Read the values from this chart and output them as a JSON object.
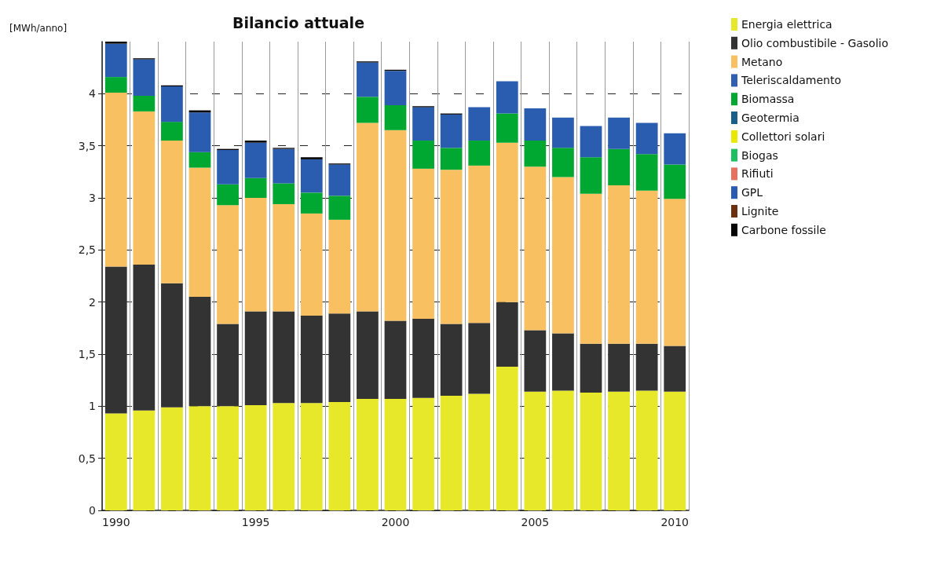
{
  "chart_data": {
    "type": "bar",
    "title": "Bilancio attuale",
    "ylabel": "[MWh/anno]",
    "stacked": true,
    "grid": true,
    "legend": "top right",
    "categories": [
      "1990",
      null,
      null,
      null,
      null,
      "1995",
      null,
      null,
      null,
      null,
      "2000",
      null,
      null,
      null,
      null,
      "2005",
      null,
      null,
      null,
      null,
      "2010"
    ],
    "ylim": [
      0,
      4.5
    ],
    "yticks": [
      0,
      {
        "value": 0.5,
        "label": "0,5"
      },
      1,
      {
        "value": 1.5,
        "label": "1,5"
      },
      2,
      {
        "value": 2.5,
        "label": "2,5"
      },
      3,
      {
        "value": 3.5,
        "label": "3,5"
      },
      4
    ],
    "series": [
      {
        "name": "Energia elettrica",
        "color": "#e8e82a",
        "values": [
          0.93,
          0.96,
          0.99,
          1.0,
          1.0,
          1.01,
          1.03,
          1.03,
          1.04,
          1.07,
          1.07,
          1.08,
          1.1,
          1.12,
          1.38,
          1.14,
          1.15,
          1.13,
          1.14,
          1.15,
          1.14
        ]
      },
      {
        "name": "Olio combustibile - Gasolio",
        "color": "#333333",
        "values": [
          1.41,
          1.4,
          1.19,
          1.05,
          0.79,
          0.9,
          0.88,
          0.84,
          0.85,
          0.84,
          0.75,
          0.76,
          0.69,
          0.68,
          0.62,
          0.59,
          0.55,
          0.47,
          0.46,
          0.45,
          0.44
        ]
      },
      {
        "name": "Metano",
        "color": "#f8c060",
        "values": [
          1.67,
          1.47,
          1.37,
          1.24,
          1.14,
          1.09,
          1.03,
          0.98,
          0.9,
          1.81,
          1.83,
          1.44,
          1.48,
          1.51,
          1.53,
          1.57,
          1.5,
          1.44,
          1.52,
          1.47,
          1.41
        ]
      },
      {
        "name": "Teleriscaldamento",
        "color": "#2f5fb0",
        "values": [
          0,
          0,
          0,
          0,
          0,
          0,
          0,
          0,
          0,
          0,
          0,
          0,
          0,
          0,
          0,
          0,
          0,
          0,
          0,
          0,
          0
        ]
      },
      {
        "name": "Biomassa",
        "color": "#00a832",
        "values": [
          0.15,
          0.15,
          0.18,
          0.15,
          0.2,
          0.19,
          0.2,
          0.2,
          0.23,
          0.25,
          0.24,
          0.27,
          0.21,
          0.24,
          0.28,
          0.25,
          0.28,
          0.35,
          0.35,
          0.35,
          0.33
        ]
      },
      {
        "name": "Geotermia",
        "color": "#1a5f8a",
        "values": [
          0,
          0,
          0,
          0,
          0,
          0,
          0,
          0,
          0,
          0,
          0,
          0,
          0,
          0,
          0,
          0,
          0,
          0,
          0,
          0,
          0
        ]
      },
      {
        "name": "Collettori solari",
        "color": "#e8e800",
        "values": [
          0,
          0,
          0,
          0,
          0,
          0,
          0,
          0,
          0,
          0,
          0,
          0,
          0,
          0,
          0,
          0,
          0,
          0,
          0,
          0,
          0
        ]
      },
      {
        "name": "Biogas",
        "color": "#1cc060",
        "values": [
          0,
          0,
          0,
          0,
          0,
          0,
          0,
          0,
          0,
          0,
          0,
          0,
          0,
          0,
          0,
          0,
          0,
          0,
          0,
          0,
          0
        ]
      },
      {
        "name": "Rifiuti",
        "color": "#e87060",
        "values": [
          0,
          0,
          0,
          0,
          0,
          0,
          0,
          0,
          0,
          0,
          0,
          0,
          0,
          0,
          0,
          0,
          0,
          0,
          0,
          0,
          0
        ]
      },
      {
        "name": "GPL",
        "color": "#2a5cb0",
        "values": [
          0.32,
          0.35,
          0.34,
          0.38,
          0.33,
          0.34,
          0.33,
          0.32,
          0.3,
          0.33,
          0.33,
          0.32,
          0.32,
          0.32,
          0.31,
          0.31,
          0.29,
          0.3,
          0.3,
          0.3,
          0.3
        ]
      },
      {
        "name": "Lignite",
        "color": "#6b3010",
        "values": [
          0,
          0,
          0,
          0,
          0,
          0,
          0,
          0,
          0,
          0,
          0,
          0,
          0,
          0,
          0,
          0,
          0,
          0,
          0,
          0,
          0
        ]
      },
      {
        "name": "Carbone fossile",
        "color": "#050505",
        "values": [
          0.02,
          0.01,
          0.01,
          0.02,
          0.01,
          0.02,
          0.01,
          0.02,
          0.01,
          0.01,
          0.01,
          0.01,
          0.01,
          0,
          0,
          0,
          0,
          0,
          0,
          0,
          0
        ]
      }
    ]
  }
}
